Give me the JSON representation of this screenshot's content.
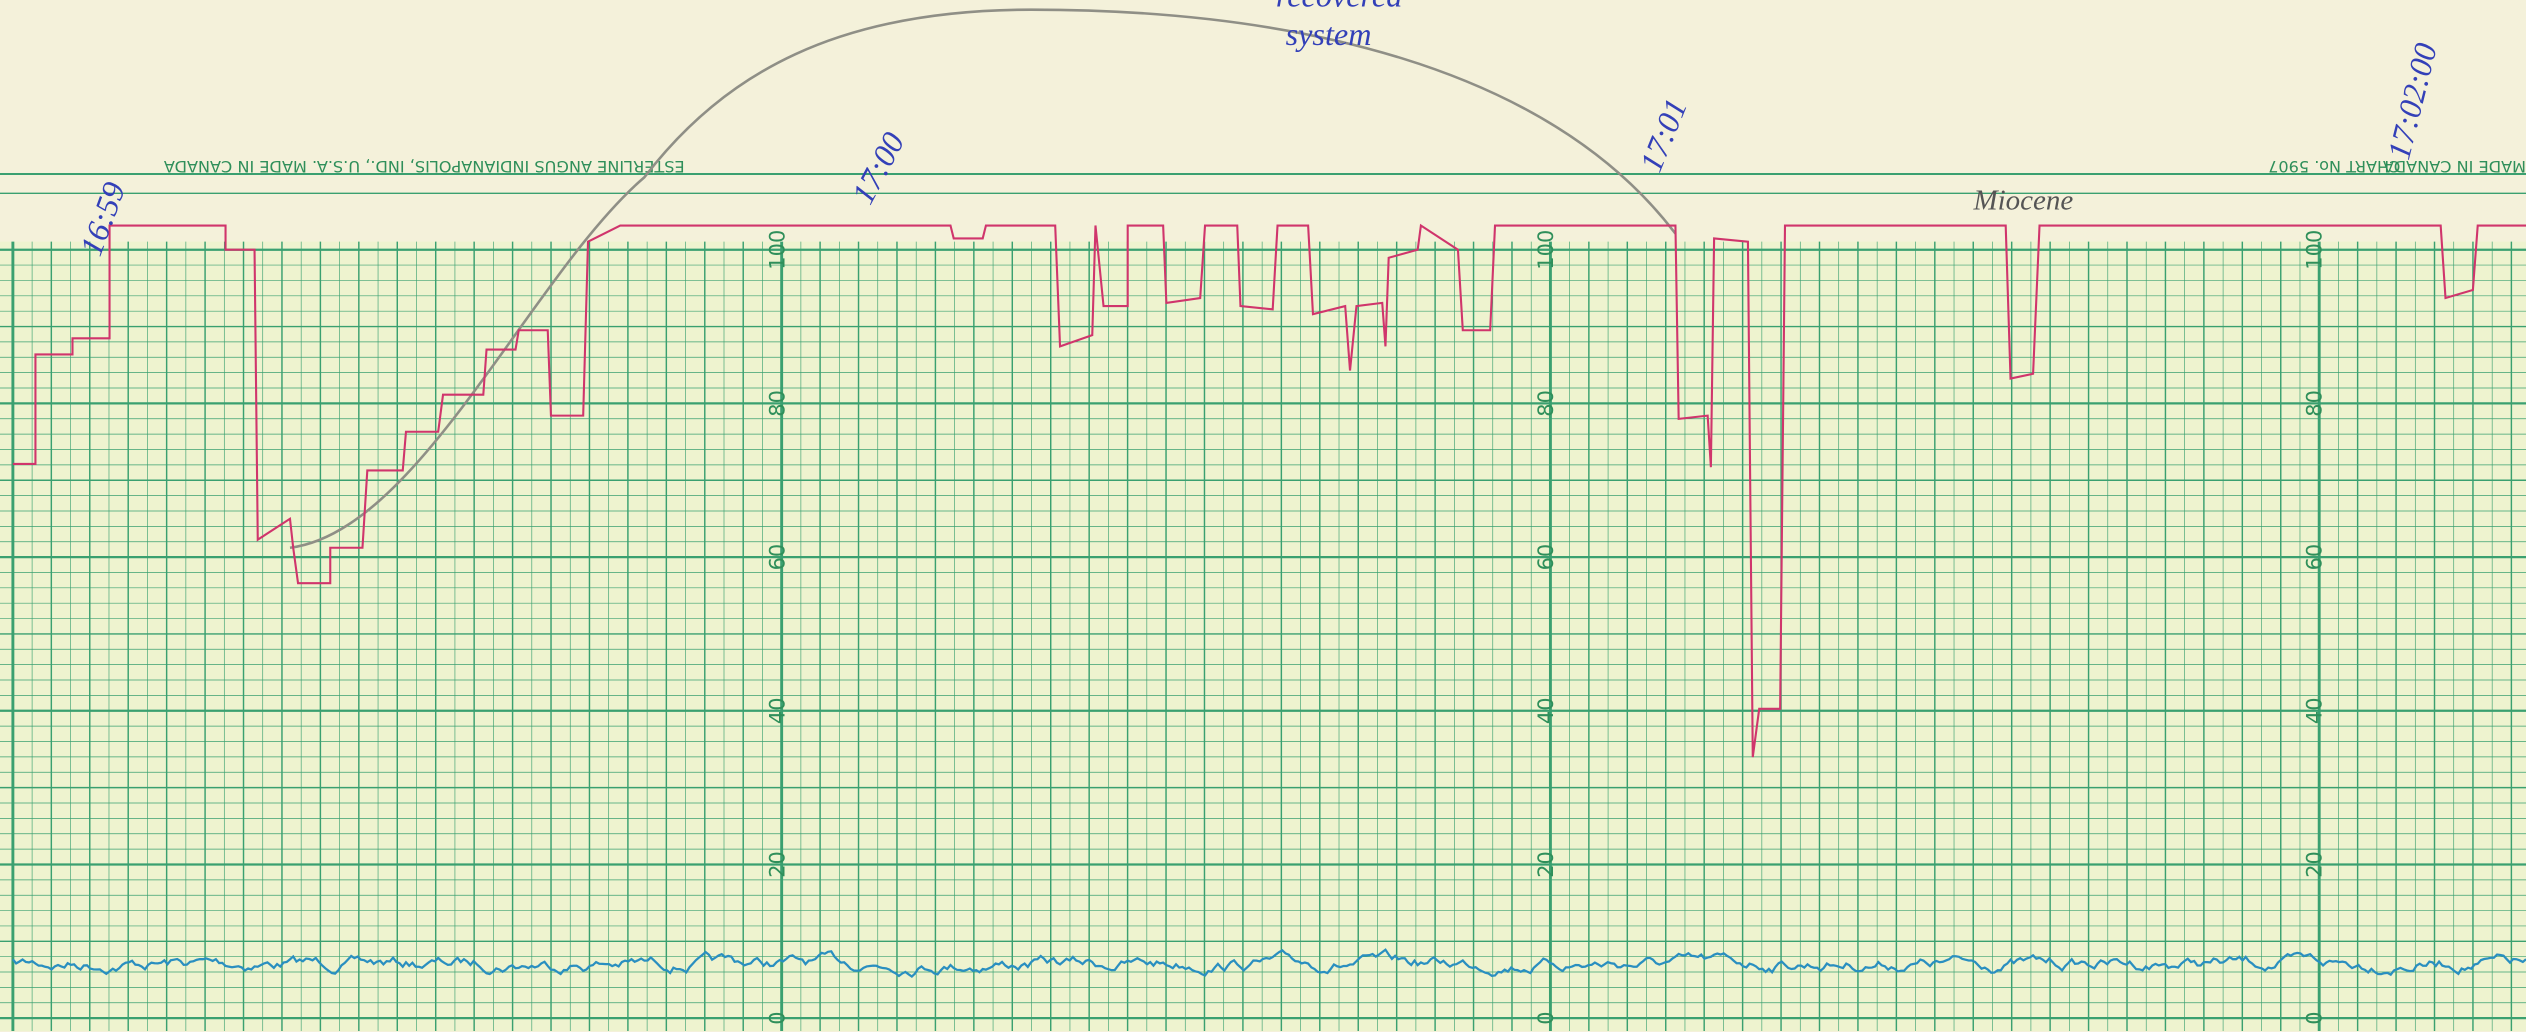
{
  "header_left": "ESTERLINE ANGUS INDIANAPOLIS, IND., U.S.A. MADE IN CANADA",
  "chart_number": "CHART No. 5907",
  "made_in": "MADE IN CANADA",
  "scale_labels": [
    "100",
    "80",
    "60",
    "40",
    "20",
    "0"
  ],
  "annotations": {
    "times": [
      "16:59",
      "17:00",
      "17:01",
      "17:02:00"
    ],
    "note": [
      "recovered",
      "system"
    ],
    "margin_note": "Miocene"
  }
}
